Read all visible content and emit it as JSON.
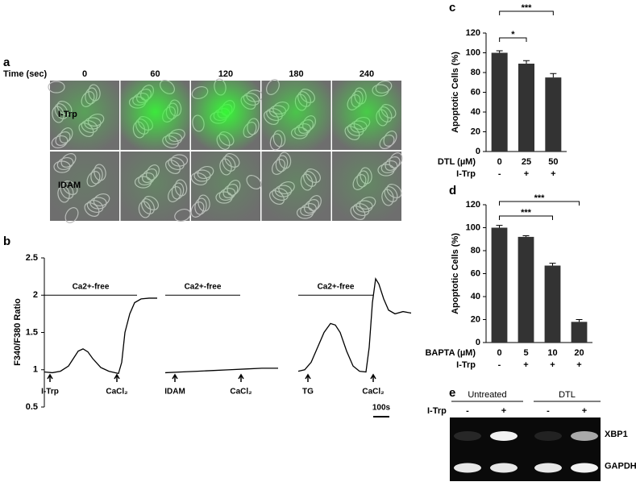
{
  "images": {
    "panel": "a",
    "time_label": "Time (sec)",
    "times": [
      "0",
      "60",
      "120",
      "180",
      "240"
    ],
    "rows": [
      "I-Trp",
      "IDAM"
    ]
  },
  "gel": {
    "panel": "e",
    "groups": [
      "Untreated",
      "DTL"
    ],
    "treatment_label": "I-Trp",
    "lanes": [
      "-",
      "+",
      "-",
      "+"
    ],
    "bands": [
      "XBP1",
      "GAPDH"
    ]
  },
  "chart_data": [
    {
      "type": "bar",
      "panel": "c",
      "y_label": "Apoptotic Cells (%)",
      "categories": [
        "0",
        "25",
        "50"
      ],
      "row_label": "DTL (µM)",
      "treatment_label": "I-Trp",
      "treatment": [
        "-",
        "+",
        "+"
      ],
      "values": [
        100,
        89,
        75
      ],
      "errors": [
        2,
        3,
        4
      ],
      "color": "#333333",
      "ylim": [
        0,
        120
      ],
      "yticks": [
        0,
        20,
        40,
        60,
        80,
        100,
        120
      ],
      "annotations": [
        "*",
        "***"
      ]
    },
    {
      "type": "bar",
      "panel": "d",
      "y_label": "Apoptotic Cells (%)",
      "categories": [
        "0",
        "5",
        "10",
        "20"
      ],
      "row_label": "BAPTA (µM)",
      "treatment_label": "I-Trp",
      "treatment": [
        "-",
        "+",
        "+",
        "+"
      ],
      "values": [
        100,
        92,
        67,
        18
      ],
      "errors": [
        2,
        1,
        2,
        2
      ],
      "color": "#333333",
      "ylim": [
        0,
        120
      ],
      "yticks": [
        0,
        20,
        40,
        60,
        80,
        100,
        120
      ],
      "annotations": [
        "***",
        "***"
      ]
    },
    {
      "type": "line",
      "panel": "b",
      "y_label": "F340/F380 Ratio",
      "ylim": [
        0.5,
        2.5
      ],
      "yticks": [
        0.5,
        1,
        1.5,
        2,
        2.5
      ],
      "xlim": [
        0,
        700
      ],
      "scale_label": "100s",
      "series": [
        {
          "color": "#000000",
          "ca_label": "Ca2+-free",
          "markers": [
            "I-Trp",
            "CaCl₂"
          ],
          "x": [
            0,
            50,
            100,
            150,
            180,
            210,
            240,
            270,
            300,
            350,
            400,
            440,
            460,
            480,
            500,
            530,
            560,
            600,
            650,
            700
          ],
          "values": [
            0.97,
            0.96,
            0.98,
            1.05,
            1.15,
            1.25,
            1.28,
            1.24,
            1.15,
            1.03,
            0.98,
            0.96,
            0.95,
            1.1,
            1.5,
            1.75,
            1.9,
            1.95,
            1.96,
            1.96
          ]
        },
        {
          "color": "#000000",
          "ca_label": "Ca2+-free",
          "markers": [
            "IDAM",
            "CaCl₂"
          ],
          "x": [
            0,
            100,
            200,
            300,
            400,
            500,
            600,
            700
          ],
          "values": [
            0.96,
            0.97,
            0.98,
            0.99,
            1.0,
            1.01,
            1.02,
            1.02
          ]
        },
        {
          "color": "#000000",
          "ca_label": "Ca2+-free",
          "markers": [
            "TG",
            "CaCl₂"
          ],
          "x": [
            0,
            40,
            80,
            120,
            160,
            200,
            230,
            260,
            300,
            340,
            380,
            420,
            440,
            460,
            480,
            500,
            530,
            560,
            600,
            650,
            700
          ],
          "values": [
            0.98,
            1.0,
            1.1,
            1.3,
            1.5,
            1.62,
            1.6,
            1.5,
            1.25,
            1.05,
            0.98,
            0.97,
            1.3,
            1.9,
            2.22,
            2.15,
            1.95,
            1.8,
            1.75,
            1.78,
            1.76
          ]
        }
      ]
    }
  ]
}
